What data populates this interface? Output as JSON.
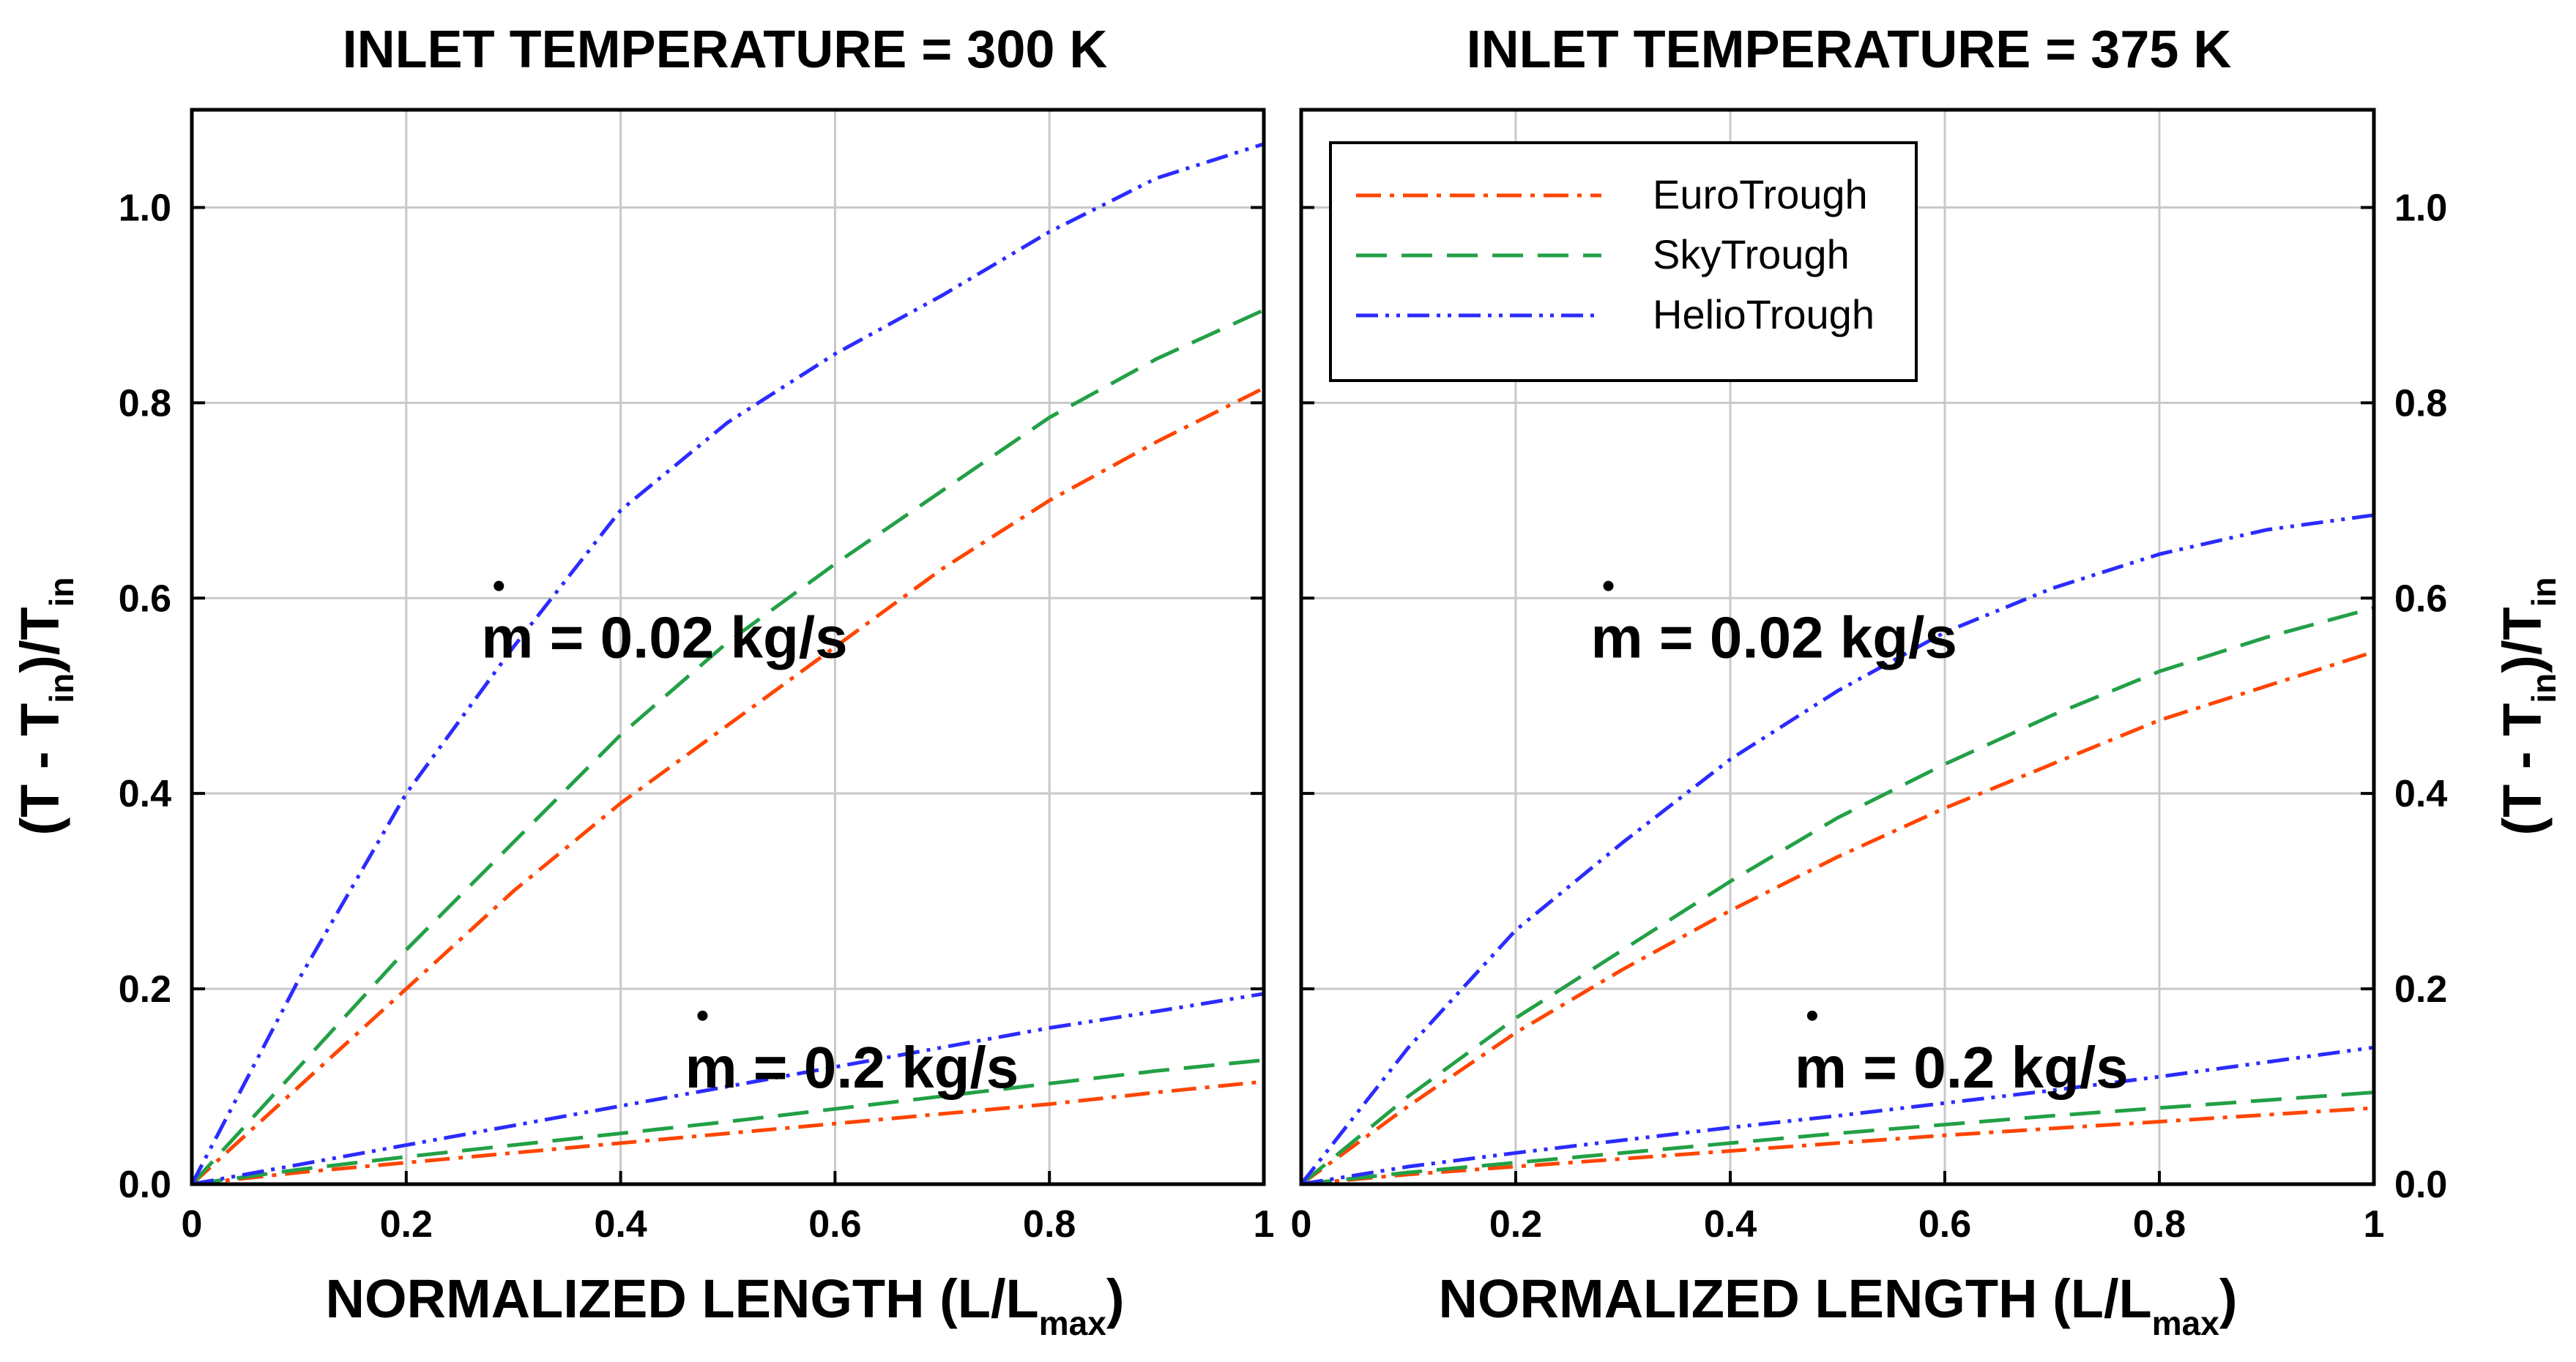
{
  "chart_data": [
    {
      "type": "line",
      "title": "INLET TEMPERATURE = 300 K",
      "xlabel": "NORMALIZED LENGTH (L/L",
      "xlabel_sub": "max",
      "xlabel_tail": ")",
      "ylabel": "(T - T",
      "ylabel_sub": "in",
      "ylabel_mid": ")/T",
      "ylabel_sub2": "in",
      "xlim": [
        0,
        1
      ],
      "ylim": [
        0,
        1.1
      ],
      "xticks": [
        "0",
        "0.2",
        "0.4",
        "0.6",
        "0.8",
        "1"
      ],
      "yticks": [
        "0.0",
        "0.2",
        "0.4",
        "0.6",
        "0.8",
        "1.0"
      ],
      "grid": true,
      "annotations": [
        {
          "text": "m = 0.02 kg/s",
          "x": 0.27,
          "y": 0.56
        },
        {
          "text": "m = 0.2 kg/s",
          "x": 0.46,
          "y": 0.12
        }
      ],
      "series": [
        {
          "name": "EuroTrough",
          "color": "#ff4500",
          "dash": "dashdot",
          "mdot": "0.02",
          "x": [
            0,
            0.1,
            0.2,
            0.3,
            0.4,
            0.5,
            0.6,
            0.7,
            0.8,
            0.9,
            1.0
          ],
          "y": [
            0,
            0.1,
            0.2,
            0.3,
            0.39,
            0.47,
            0.55,
            0.63,
            0.7,
            0.76,
            0.815
          ]
        },
        {
          "name": "SkyTrough",
          "color": "#22a046",
          "dash": "dash",
          "mdot": "0.02",
          "x": [
            0,
            0.1,
            0.2,
            0.3,
            0.4,
            0.5,
            0.6,
            0.7,
            0.8,
            0.9,
            1.0
          ],
          "y": [
            0,
            0.12,
            0.24,
            0.35,
            0.46,
            0.555,
            0.635,
            0.71,
            0.785,
            0.845,
            0.895
          ]
        },
        {
          "name": "HelioTrough",
          "color": "#2b2bff",
          "dash": "dashdotdot",
          "mdot": "0.02",
          "x": [
            0,
            0.1,
            0.2,
            0.3,
            0.4,
            0.5,
            0.6,
            0.7,
            0.8,
            0.9,
            1.0
          ],
          "y": [
            0,
            0.21,
            0.4,
            0.55,
            0.69,
            0.78,
            0.85,
            0.91,
            0.975,
            1.03,
            1.065
          ]
        },
        {
          "name": "EuroTrough",
          "color": "#ff4500",
          "dash": "dashdot",
          "mdot": "0.2",
          "x": [
            0,
            0.1,
            0.2,
            0.3,
            0.4,
            0.5,
            0.6,
            0.7,
            0.8,
            0.9,
            1.0
          ],
          "y": [
            0,
            0.012,
            0.022,
            0.032,
            0.042,
            0.052,
            0.062,
            0.072,
            0.082,
            0.094,
            0.105
          ]
        },
        {
          "name": "SkyTrough",
          "color": "#22a046",
          "dash": "dash",
          "mdot": "0.2",
          "x": [
            0,
            0.1,
            0.2,
            0.3,
            0.4,
            0.5,
            0.6,
            0.7,
            0.8,
            0.9,
            1.0
          ],
          "y": [
            0,
            0.015,
            0.028,
            0.04,
            0.052,
            0.064,
            0.077,
            0.09,
            0.103,
            0.116,
            0.127
          ]
        },
        {
          "name": "HelioTrough",
          "color": "#2b2bff",
          "dash": "dashdotdot",
          "mdot": "0.2",
          "x": [
            0,
            0.1,
            0.2,
            0.3,
            0.4,
            0.5,
            0.6,
            0.7,
            0.8,
            0.9,
            1.0
          ],
          "y": [
            0,
            0.02,
            0.04,
            0.06,
            0.08,
            0.1,
            0.12,
            0.14,
            0.16,
            0.177,
            0.195
          ]
        }
      ]
    },
    {
      "type": "line",
      "title": "INLET TEMPERATURE = 375 K",
      "xlabel": "NORMALIZED LENGTH (L/L",
      "xlabel_sub": "max",
      "xlabel_tail": ")",
      "ylabel": "(T - T",
      "ylabel_sub": "in",
      "ylabel_mid": ")/T",
      "ylabel_sub2": "in",
      "xlim": [
        0,
        1
      ],
      "ylim": [
        0,
        1.1
      ],
      "xticks": [
        "0",
        "0.2",
        "0.4",
        "0.6",
        "0.8",
        "1"
      ],
      "yticks": [
        "0.0",
        "0.2",
        "0.4",
        "0.6",
        "0.8",
        "1.0"
      ],
      "grid": true,
      "legend": {
        "position": "top-left",
        "entries": [
          "EuroTrough",
          "SkyTrough",
          "HelioTrough"
        ]
      },
      "annotations": [
        {
          "text": "m = 0.02 kg/s",
          "x": 0.27,
          "y": 0.56
        },
        {
          "text": "m = 0.2 kg/s",
          "x": 0.46,
          "y": 0.12
        }
      ],
      "series": [
        {
          "name": "EuroTrough",
          "color": "#ff4500",
          "dash": "dashdot",
          "mdot": "0.02",
          "x": [
            0,
            0.1,
            0.2,
            0.3,
            0.4,
            0.5,
            0.6,
            0.7,
            0.8,
            0.9,
            1.0
          ],
          "y": [
            0,
            0.08,
            0.155,
            0.22,
            0.28,
            0.335,
            0.385,
            0.43,
            0.475,
            0.51,
            0.545
          ]
        },
        {
          "name": "SkyTrough",
          "color": "#22a046",
          "dash": "dash",
          "mdot": "0.02",
          "x": [
            0,
            0.1,
            0.2,
            0.3,
            0.4,
            0.5,
            0.6,
            0.7,
            0.8,
            0.9,
            1.0
          ],
          "y": [
            0,
            0.09,
            0.17,
            0.24,
            0.31,
            0.375,
            0.43,
            0.48,
            0.525,
            0.56,
            0.59
          ]
        },
        {
          "name": "HelioTrough",
          "color": "#2b2bff",
          "dash": "dashdotdot",
          "mdot": "0.02",
          "x": [
            0,
            0.1,
            0.2,
            0.3,
            0.4,
            0.5,
            0.6,
            0.7,
            0.8,
            0.9,
            1.0
          ],
          "y": [
            0,
            0.14,
            0.26,
            0.35,
            0.435,
            0.505,
            0.565,
            0.61,
            0.645,
            0.67,
            0.685
          ]
        },
        {
          "name": "EuroTrough",
          "color": "#ff4500",
          "dash": "dashdot",
          "mdot": "0.2",
          "x": [
            0,
            0.1,
            0.2,
            0.3,
            0.4,
            0.5,
            0.6,
            0.7,
            0.8,
            0.9,
            1.0
          ],
          "y": [
            0,
            0.01,
            0.018,
            0.026,
            0.034,
            0.042,
            0.05,
            0.057,
            0.064,
            0.071,
            0.078
          ]
        },
        {
          "name": "SkyTrough",
          "color": "#22a046",
          "dash": "dash",
          "mdot": "0.2",
          "x": [
            0,
            0.1,
            0.2,
            0.3,
            0.4,
            0.5,
            0.6,
            0.7,
            0.8,
            0.9,
            1.0
          ],
          "y": [
            0,
            0.012,
            0.022,
            0.032,
            0.042,
            0.052,
            0.061,
            0.07,
            0.078,
            0.086,
            0.094
          ]
        },
        {
          "name": "HelioTrough",
          "color": "#2b2bff",
          "dash": "dashdotdot",
          "mdot": "0.2",
          "x": [
            0,
            0.1,
            0.2,
            0.3,
            0.4,
            0.5,
            0.6,
            0.7,
            0.8,
            0.9,
            1.0
          ],
          "y": [
            0,
            0.018,
            0.032,
            0.045,
            0.058,
            0.07,
            0.083,
            0.096,
            0.11,
            0.125,
            0.14
          ]
        }
      ]
    }
  ]
}
